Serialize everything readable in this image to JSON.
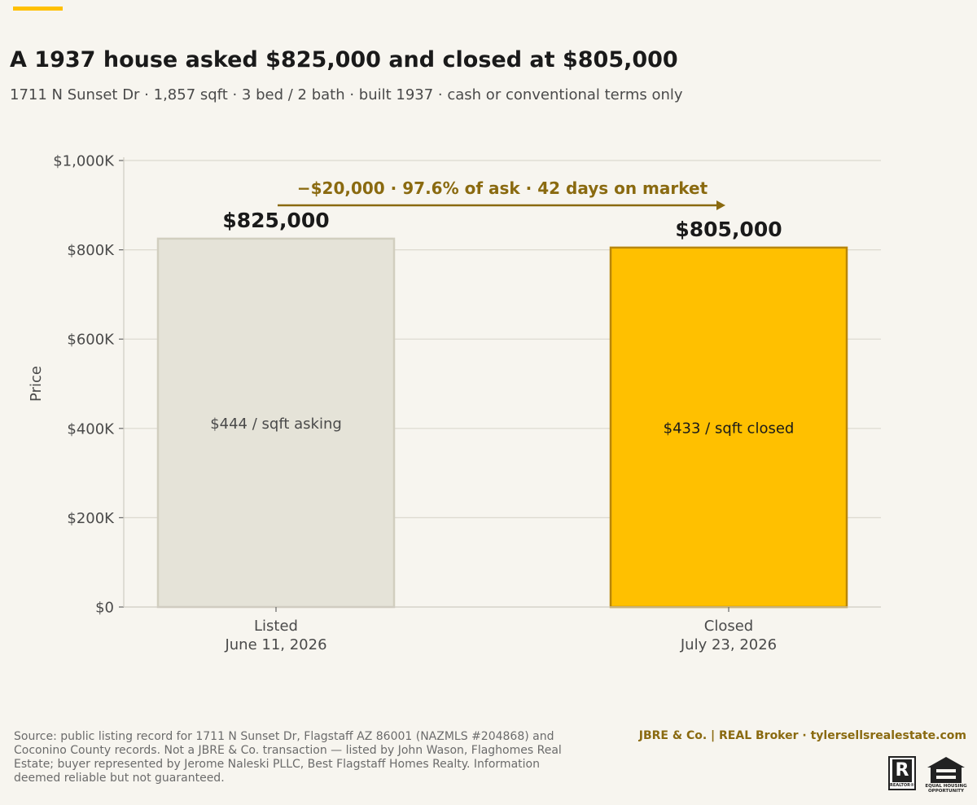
{
  "header": {
    "title": "A 1937 house asked $825,000 and closed at $805,000",
    "subtitle": "1711 N Sunset Dr · 1,857 sqft · 3 bed / 2 bath · built 1937 · cash or conventional terms only"
  },
  "chart_data": {
    "type": "bar",
    "categories": [
      "Listed",
      "Closed"
    ],
    "category_dates": [
      "June 11, 2026",
      "July 23, 2026"
    ],
    "values": [
      825000,
      805000
    ],
    "value_labels": [
      "$825,000",
      "$805,000"
    ],
    "inner_labels": [
      "$444 / sqft asking",
      "$433 / sqft closed"
    ],
    "bar_colors": [
      "#e5e3d8",
      "#ffc000"
    ],
    "bar_edge_colors": [
      "#d1cebf",
      "#b8860b"
    ],
    "ylabel": "Price",
    "ylim": [
      0,
      1000000
    ],
    "yticks": [
      0,
      200000,
      400000,
      600000,
      800000,
      1000000
    ],
    "ytick_labels": [
      "$0",
      "$200K",
      "$400K",
      "$600K",
      "$800K",
      "$1,000K"
    ],
    "annotation": "−$20,000  ·  97.6% of ask  ·  42 days on market",
    "annotation_color": "#8a6a10",
    "grid": true
  },
  "footer": {
    "source": "Source: public listing record for 1711 N Sunset Dr, Flagstaff AZ 86001 (NAZMLS #204868) and Coconino County records. Not a JBRE & Co. transaction — listed by John Wason, Flaghomes Real Estate; buyer represented by Jerome Naleski PLLC, Best Flagstaff Homes Realty. Information deemed reliable but not guaranteed.",
    "brand": "JBRE & Co.  |  REAL Broker   ·   tylersellsrealestate.com",
    "realtor_logo_text": "REALTOR®",
    "eho_logo_text": "EQUAL HOUSING OPPORTUNITY"
  },
  "colors": {
    "accent": "#ffc000",
    "background": "#f7f5ef",
    "brand_text": "#8a6a10"
  }
}
